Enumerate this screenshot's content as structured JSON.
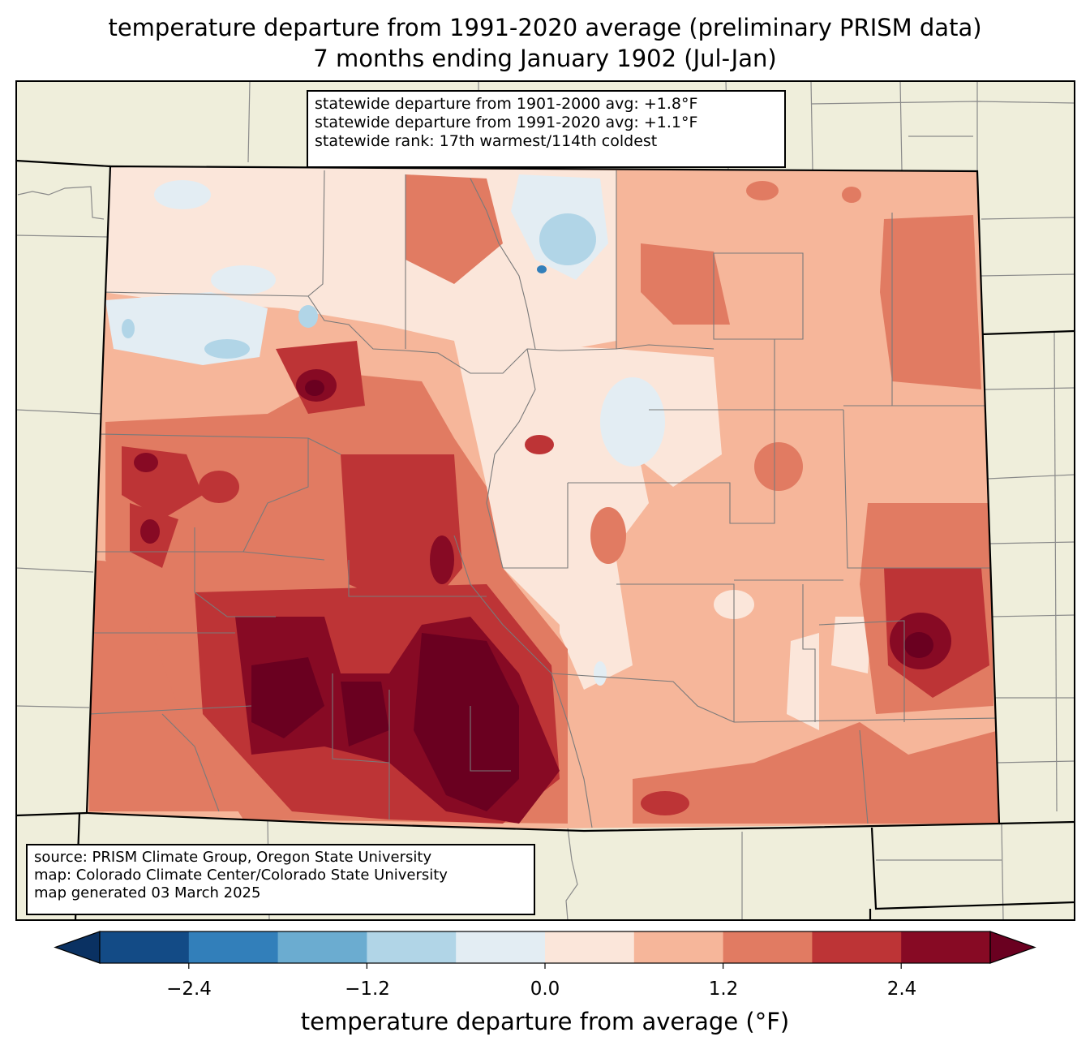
{
  "title": {
    "line1": "temperature departure from 1991-2020 average (preliminary PRISM data)",
    "line2": "7 months ending January 1902 (Jul-Jan)"
  },
  "stats": {
    "line1": "statewide departure from 1901-2000 avg: +1.8°F",
    "line2": "statewide departure from 1991-2020 avg: +1.1°F",
    "line3": "statewide rank: 17th warmest/114th coldest"
  },
  "source": {
    "line1": "source: PRISM Climate Group, Oregon State University",
    "line2": "map: Colorado Climate Center/Colorado State University",
    "line3": "map generated 03 March 2025"
  },
  "colorbar": {
    "label": "temperature departure from average (°F)",
    "ticks": [
      "−2.4",
      "−1.2",
      "0.0",
      "1.2",
      "2.4"
    ],
    "bins": [
      -3.0,
      -2.4,
      -1.8,
      -1.2,
      -0.6,
      0.0,
      0.6,
      1.2,
      1.8,
      2.4,
      3.0
    ],
    "colors": [
      "#0a3162",
      "#134b86",
      "#327fba",
      "#6bacd0",
      "#b1d5e7",
      "#e3edf3",
      "#fbe6da",
      "#f6b69a",
      "#e17b62",
      "#bd3436",
      "#870a24",
      "#6a0020"
    ]
  },
  "colors": {
    "background_land": "#efeedb",
    "state_border": "#000000",
    "county_border": "#808080"
  }
}
